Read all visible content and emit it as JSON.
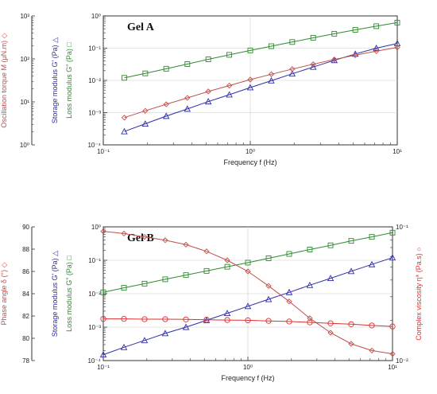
{
  "colors": {
    "torque": "#c0504d",
    "storage": "#2e2eaa",
    "loss": "#2e8b2e",
    "phase": "#c0504d",
    "viscosity": "#e03030",
    "axis": "#333333"
  },
  "chart_data": [
    {
      "type": "line",
      "panel": "Gel A",
      "xlabel": "Frequency f (Hz)",
      "xscale": "log",
      "xlim": [
        0.1,
        10
      ],
      "xticks": [
        "10⁻¹",
        "10⁰",
        "10¹"
      ],
      "axes": [
        {
          "key": "torque",
          "label": "Oscillation torque M (μN.m) ◇",
          "scale": "log",
          "range": [
            1,
            1000
          ],
          "ticks": [
            "10⁰",
            "10¹",
            "10²",
            "10³"
          ]
        },
        {
          "key": "modulus",
          "label_storage": "Storage modulus G' (Pa) △",
          "label_loss": "Loss modulus G\" (Pa) □",
          "scale": "log",
          "range": [
            0.0001,
            1
          ],
          "ticks": [
            "10⁻⁴",
            "10⁻³",
            "10⁻²",
            "10⁻¹",
            "10⁰"
          ]
        }
      ],
      "x": [
        0.139,
        0.193,
        0.268,
        0.373,
        0.518,
        0.72,
        1.0,
        1.39,
        1.93,
        2.68,
        3.73,
        5.18,
        7.2,
        10.0
      ],
      "series": [
        {
          "name": "Storage modulus G'",
          "axis": "modulus",
          "marker": "triangle",
          "color": "#2e2eaa",
          "values": [
            0.00026,
            0.00045,
            0.00078,
            0.0013,
            0.0022,
            0.0036,
            0.006,
            0.0098,
            0.016,
            0.026,
            0.042,
            0.066,
            0.1,
            0.14
          ]
        },
        {
          "name": "Loss modulus G\"",
          "axis": "modulus",
          "marker": "square",
          "color": "#2e8b2e",
          "values": [
            0.012,
            0.0165,
            0.023,
            0.032,
            0.045,
            0.062,
            0.085,
            0.115,
            0.155,
            0.21,
            0.28,
            0.37,
            0.48,
            0.62
          ]
        },
        {
          "name": "Oscillation torque M",
          "axis": "torque",
          "marker": "diamond",
          "color": "#c0504d",
          "values": [
            4.3,
            6.2,
            8.8,
            12.4,
            17.5,
            24,
            33,
            44,
            58,
            75,
            97,
            122,
            152,
            185
          ]
        }
      ]
    },
    {
      "type": "line",
      "panel": "Gel B",
      "xlabel": "Frequency f (Hz)",
      "xscale": "log",
      "xlim": [
        0.1,
        10
      ],
      "xticks": [
        "10⁻¹",
        "10⁰",
        "10¹"
      ],
      "axes": [
        {
          "key": "phase",
          "label": "Phase angle δ (°) ◇",
          "scale": "linear",
          "range": [
            78,
            90
          ],
          "ticks": [
            "78",
            "80",
            "82",
            "84",
            "86",
            "88",
            "90"
          ]
        },
        {
          "key": "modulus",
          "label_storage": "Storage modulus G' (Pa) △",
          "label_loss": "Loss modulus G\" (Pa) □",
          "scale": "log",
          "range": [
            0.0001,
            1
          ],
          "ticks": [
            "10⁻⁴",
            "10⁻³",
            "10⁻²",
            "10⁻¹",
            "10⁰"
          ]
        },
        {
          "key": "viscosity",
          "label": "Complex viscosity η* (Pa.s) ○",
          "scale": "log",
          "range": [
            0.01,
            0.1
          ],
          "ticks": [
            "10⁻²",
            "10⁻¹"
          ]
        }
      ],
      "x": [
        0.1,
        0.139,
        0.193,
        0.268,
        0.373,
        0.518,
        0.72,
        1.0,
        1.39,
        1.93,
        2.68,
        3.73,
        5.18,
        7.2,
        10.0
      ],
      "series": [
        {
          "name": "Storage modulus G'",
          "axis": "modulus",
          "marker": "triangle",
          "color": "#2e2eaa",
          "values": [
            0.00015,
            0.00025,
            0.0004,
            0.00065,
            0.001,
            0.0016,
            0.0026,
            0.0042,
            0.0068,
            0.011,
            0.018,
            0.029,
            0.047,
            0.075,
            0.12
          ]
        },
        {
          "name": "Loss modulus G\"",
          "axis": "modulus",
          "marker": "square",
          "color": "#2e8b2e",
          "values": [
            0.011,
            0.015,
            0.02,
            0.027,
            0.036,
            0.048,
            0.064,
            0.085,
            0.115,
            0.155,
            0.21,
            0.28,
            0.38,
            0.5,
            0.67
          ]
        },
        {
          "name": "Phase angle δ",
          "axis": "phase",
          "marker": "diamond",
          "color": "#c0504d",
          "values": [
            89.6,
            89.4,
            89.1,
            88.8,
            88.4,
            87.8,
            87.0,
            86.0,
            84.7,
            83.3,
            81.8,
            80.5,
            79.5,
            78.9,
            78.6
          ]
        },
        {
          "name": "Complex viscosity η*",
          "axis": "viscosity",
          "marker": "circle",
          "color": "#e03030",
          "values": [
            0.0205,
            0.0205,
            0.0204,
            0.0204,
            0.0203,
            0.0202,
            0.0201,
            0.02,
            0.0198,
            0.0196,
            0.0193,
            0.019,
            0.0187,
            0.0183,
            0.018
          ]
        }
      ]
    }
  ]
}
